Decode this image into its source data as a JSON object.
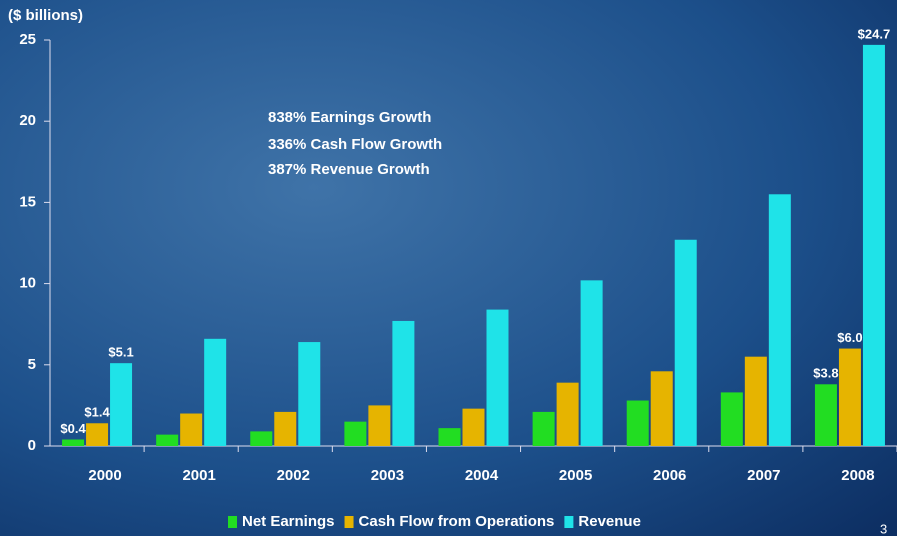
{
  "chart_data": {
    "type": "bar",
    "y_axis_label": "($ billions)",
    "annotations": [
      "838% Earnings Growth",
      "336% Cash Flow Growth",
      "387% Revenue Growth"
    ],
    "page_number": "3",
    "categories": [
      "2000",
      "2001",
      "2002",
      "2003",
      "2004",
      "2005",
      "2006",
      "2007",
      "2008"
    ],
    "series": [
      {
        "name": "Net Earnings",
        "color": "#22dd22",
        "values": [
          0.4,
          0.7,
          0.9,
          1.5,
          1.1,
          2.1,
          2.8,
          3.3,
          3.8
        ],
        "value_labels": [
          "$0.4",
          null,
          null,
          null,
          null,
          null,
          null,
          null,
          "$3.8"
        ]
      },
      {
        "name": "Cash Flow from Operations",
        "color": "#e6b400",
        "values": [
          1.4,
          2.0,
          2.1,
          2.5,
          2.3,
          3.9,
          4.6,
          5.5,
          6.0
        ],
        "value_labels": [
          "$1.4",
          null,
          null,
          null,
          null,
          null,
          null,
          null,
          "$6.0"
        ]
      },
      {
        "name": "Revenue",
        "color": "#1fe3e8",
        "values": [
          5.1,
          6.6,
          6.4,
          7.7,
          8.4,
          10.2,
          12.7,
          15.5,
          24.7
        ],
        "value_labels": [
          "$5.1",
          null,
          null,
          null,
          null,
          null,
          null,
          null,
          "$24.7"
        ]
      }
    ],
    "ylim": [
      0,
      25
    ],
    "yticks": [
      0,
      5,
      10,
      15,
      20,
      25
    ],
    "grid": false,
    "legend": "bottom"
  }
}
